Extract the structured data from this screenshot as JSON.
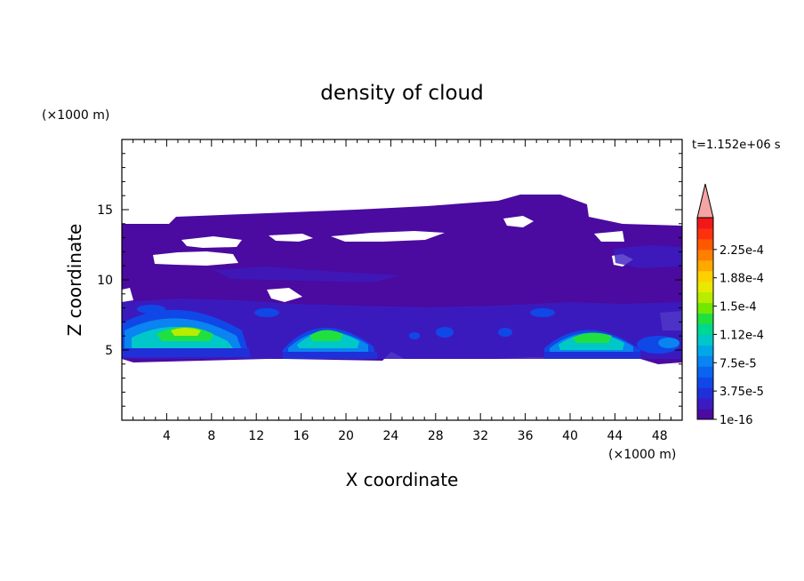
{
  "chart_data": {
    "type": "heatmap",
    "title": "density of cloud",
    "xlabel": "X coordinate",
    "ylabel": "Z coordinate",
    "x_unit": "(×1000 m)",
    "y_unit": "(×1000 m)",
    "time_label": "t=1.152e+06 s",
    "xlim": [
      0,
      50
    ],
    "ylim": [
      0,
      20
    ],
    "x_ticks": [
      4,
      8,
      12,
      16,
      20,
      24,
      28,
      32,
      36,
      40,
      44,
      48
    ],
    "y_ticks": [
      5,
      10,
      15
    ],
    "colorbar": {
      "levels": [
        "1e-16",
        "3.75e-5",
        "7.5e-5",
        "1.12e-4",
        "1.5e-4",
        "1.88e-4",
        "2.25e-4"
      ],
      "colors": [
        "#4b0aa0",
        "#3a1cc0",
        "#2030d8",
        "#1048e8",
        "#0a64f0",
        "#0a84f0",
        "#00a8e8",
        "#00c8c8",
        "#00d890",
        "#20e040",
        "#70e800",
        "#b8ec00",
        "#e8e800",
        "#ffd000",
        "#ffa800",
        "#ff8000",
        "#ff5800",
        "#ff3010",
        "#f01818"
      ],
      "overflow_color": "#f4a4a4"
    }
  }
}
